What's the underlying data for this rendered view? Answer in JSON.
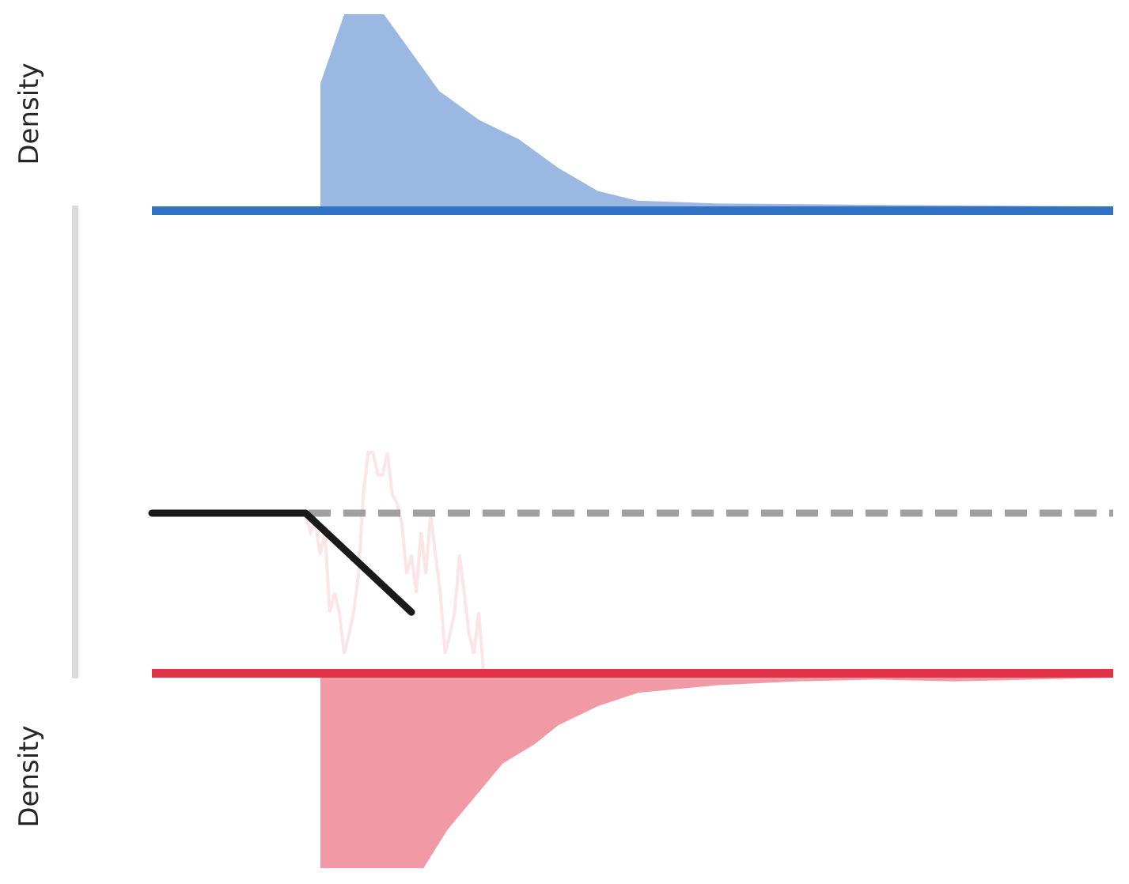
{
  "chart_data": {
    "type": "area",
    "top_panel": {
      "ylabel": "Density",
      "color": "#9ab8e1",
      "baseline_color": "#3272c4",
      "density": [
        [
          0.0,
          0.64
        ],
        [
          0.03,
          1.0
        ],
        [
          0.08,
          1.0
        ],
        [
          0.15,
          0.6
        ],
        [
          0.2,
          0.45
        ],
        [
          0.25,
          0.35
        ],
        [
          0.3,
          0.2
        ],
        [
          0.35,
          0.08
        ],
        [
          0.4,
          0.03
        ],
        [
          0.5,
          0.015
        ],
        [
          0.6,
          0.012
        ],
        [
          0.7,
          0.008
        ],
        [
          0.8,
          0.005
        ],
        [
          0.9,
          0.002
        ],
        [
          1.0,
          0.0
        ]
      ]
    },
    "middle_panel": {
      "reference_color": "#a0a0a0",
      "main_color": "#1a1a1a",
      "noise_color": "#fbe5e7",
      "main_line": [
        [
          0,
          0.5
        ],
        [
          0.16,
          0.5
        ],
        [
          0.27,
          0.19
        ]
      ],
      "noise_line": [
        [
          0.16,
          0.5
        ],
        [
          0.165,
          0.44
        ],
        [
          0.17,
          0.47
        ],
        [
          0.175,
          0.37
        ],
        [
          0.18,
          0.44
        ],
        [
          0.185,
          0.19
        ],
        [
          0.19,
          0.25
        ],
        [
          0.195,
          0.19
        ],
        [
          0.2,
          0.06
        ],
        [
          0.205,
          0.12
        ],
        [
          0.21,
          0.19
        ],
        [
          0.215,
          0.31
        ],
        [
          0.22,
          0.56
        ],
        [
          0.225,
          0.69
        ],
        [
          0.23,
          0.69
        ],
        [
          0.235,
          0.62
        ],
        [
          0.24,
          0.62
        ],
        [
          0.245,
          0.69
        ],
        [
          0.25,
          0.56
        ],
        [
          0.255,
          0.53
        ],
        [
          0.26,
          0.47
        ],
        [
          0.265,
          0.31
        ],
        [
          0.27,
          0.37
        ],
        [
          0.275,
          0.25
        ],
        [
          0.28,
          0.44
        ],
        [
          0.285,
          0.31
        ],
        [
          0.29,
          0.5
        ],
        [
          0.295,
          0.37
        ],
        [
          0.3,
          0.25
        ],
        [
          0.305,
          0.06
        ],
        [
          0.31,
          0.12
        ],
        [
          0.315,
          0.19
        ],
        [
          0.32,
          0.37
        ],
        [
          0.325,
          0.25
        ],
        [
          0.33,
          0.12
        ],
        [
          0.335,
          0.06
        ],
        [
          0.34,
          0.19
        ],
        [
          0.345,
          0.0
        ]
      ]
    },
    "bottom_panel": {
      "ylabel": "Density",
      "color": "#f19aa5",
      "baseline_color": "#e23248",
      "density": [
        [
          0.0,
          1.0
        ],
        [
          0.1,
          1.0
        ],
        [
          0.13,
          1.0
        ],
        [
          0.16,
          0.8
        ],
        [
          0.2,
          0.6
        ],
        [
          0.23,
          0.45
        ],
        [
          0.27,
          0.35
        ],
        [
          0.3,
          0.25
        ],
        [
          0.35,
          0.15
        ],
        [
          0.4,
          0.08
        ],
        [
          0.5,
          0.04
        ],
        [
          0.6,
          0.02
        ],
        [
          0.7,
          0.01
        ],
        [
          0.8,
          0.02
        ],
        [
          0.9,
          0.01
        ],
        [
          1.0,
          0.0
        ]
      ]
    }
  }
}
